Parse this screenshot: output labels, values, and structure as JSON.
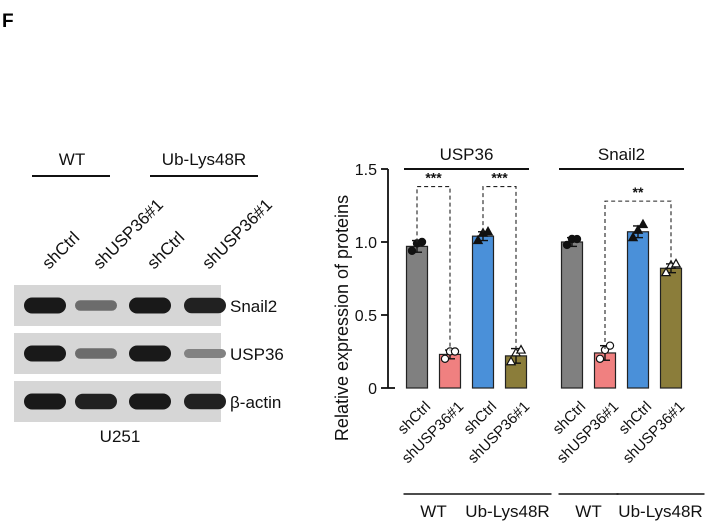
{
  "panel_letter": "F",
  "blot": {
    "group_labels": [
      "WT",
      "Ub-Lys48R"
    ],
    "lane_labels": [
      "shCtrl",
      "shUSP36#1",
      "shCtrl",
      "shUSP36#1"
    ],
    "bands": [
      {
        "name": "Snail2",
        "intensities": [
          1.0,
          0.45,
          1.0,
          0.95
        ]
      },
      {
        "name": "USP36",
        "intensities": [
          1.0,
          0.45,
          1.0,
          0.3
        ]
      },
      {
        "name": "β-actin",
        "intensities": [
          1.0,
          0.95,
          1.0,
          0.95
        ]
      }
    ],
    "cell_line": "U251"
  },
  "chart_data": {
    "type": "bar",
    "title": "",
    "xlabel": "",
    "ylabel": "Relative expression of proteins",
    "ylim": [
      0,
      1.5
    ],
    "yticks": [
      0,
      0.5,
      1.0,
      1.5
    ],
    "ytick_labels": [
      "0",
      "0.5",
      "1.0",
      "1.5"
    ],
    "groups": [
      {
        "name": "USP36",
        "bars": [
          {
            "label": "shCtrl",
            "value": 0.97,
            "error": 0.04,
            "color": "#808080",
            "marker": "circle",
            "points": [
              0.94,
              0.97,
              1.0
            ]
          },
          {
            "label": "shUSP36#1",
            "value": 0.23,
            "error": 0.03,
            "color": "#f08080",
            "marker": "circle-open",
            "points": [
              0.2,
              0.23,
              0.25
            ]
          },
          {
            "label": "shCtrl",
            "value": 1.04,
            "error": 0.03,
            "color": "#4a90d9",
            "marker": "triangle",
            "points": [
              1.01,
              1.04,
              1.07
            ]
          },
          {
            "label": "shUSP36#1",
            "value": 0.22,
            "error": 0.05,
            "color": "#8b7d3a",
            "marker": "triangle-open",
            "points": [
              0.18,
              0.22,
              0.26
            ]
          }
        ],
        "significance": [
          {
            "from": 0,
            "to": 1,
            "text": "***",
            "y": 1.38
          },
          {
            "from": 2,
            "to": 3,
            "text": "***",
            "y": 1.38
          }
        ]
      },
      {
        "name": "Snail2",
        "bars": [
          {
            "label": "shCtrl",
            "value": 1.0,
            "error": 0.03,
            "color": "#808080",
            "marker": "circle",
            "points": [
              0.98,
              1.0,
              1.02
            ]
          },
          {
            "label": "shUSP36#1",
            "value": 0.24,
            "error": 0.05,
            "color": "#f08080",
            "marker": "circle-open",
            "points": [
              0.2,
              0.24,
              0.29
            ]
          },
          {
            "label": "shCtrl",
            "value": 1.07,
            "error": 0.04,
            "color": "#4a90d9",
            "marker": "triangle",
            "points": [
              1.03,
              1.06,
              1.12
            ]
          },
          {
            "label": "shUSP36#1",
            "value": 0.82,
            "error": 0.03,
            "color": "#8b7d3a",
            "marker": "triangle-open",
            "points": [
              0.79,
              0.82,
              0.85
            ]
          }
        ],
        "significance": [
          {
            "from": 1,
            "to": 3,
            "text": "**",
            "y": 1.28
          }
        ]
      }
    ],
    "condition_labels": [
      "WT",
      "Ub-Lys48R",
      "WT",
      "Ub-Lys48R"
    ]
  }
}
